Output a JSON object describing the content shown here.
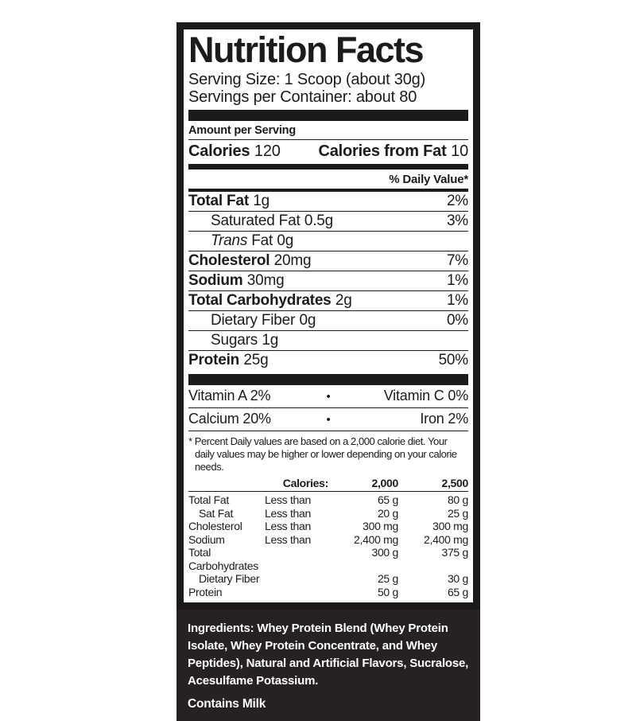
{
  "colors": {
    "ink": "#1c1a1b",
    "panel_bg": "#262223",
    "paper": "#ffffff"
  },
  "label": {
    "title": "Nutrition Facts",
    "serving_size": "Serving Size: 1 Scoop (about 30g)",
    "servings_per_container": "Servings per Container: about 80",
    "amount_per_serving": "Amount per Serving",
    "calories": {
      "label": "Calories",
      "value": "120",
      "from_fat_label": "Calories from Fat",
      "from_fat_value": "10"
    },
    "daily_value_header": "% Daily Value*",
    "nutrient_rows": [
      {
        "name": "Total Fat",
        "amount": "1g",
        "dv": "2%",
        "bold": true,
        "indent": 0,
        "italic": false
      },
      {
        "name": "Saturated Fat",
        "amount": "0.5g",
        "dv": "3%",
        "bold": false,
        "indent": 1,
        "italic": false
      },
      {
        "name": "Trans Fat",
        "amount": "0g",
        "dv": "",
        "bold": false,
        "indent": 1,
        "italic": true
      },
      {
        "name": "Cholesterol",
        "amount": "20mg",
        "dv": "7%",
        "bold": true,
        "indent": 0,
        "italic": false
      },
      {
        "name": "Sodium",
        "amount": "30mg",
        "dv": "1%",
        "bold": true,
        "indent": 0,
        "italic": false
      },
      {
        "name": "Total Carbohydrates",
        "amount": "2g",
        "dv": "1%",
        "bold": true,
        "indent": 0,
        "italic": false
      },
      {
        "name": "Dietary Fiber",
        "amount": "0g",
        "dv": "0%",
        "bold": false,
        "indent": 1,
        "italic": false
      },
      {
        "name": "Sugars",
        "amount": "1g",
        "dv": "",
        "bold": false,
        "indent": 1,
        "italic": false
      },
      {
        "name": "Protein",
        "amount": "25g",
        "dv": "50%",
        "bold": true,
        "indent": 0,
        "italic": false
      }
    ],
    "micronutrients": [
      {
        "left": "Vitamin A  2%",
        "bullet": "•",
        "right": "Vitamin C  0%"
      },
      {
        "left": "Calcium  20%",
        "bullet": "•",
        "right": "Iron  2%"
      }
    ],
    "footnote": "* Percent Daily values are based on a 2,000 calorie diet. Your daily values may be higher or lower depending on your calorie needs.",
    "dv_table": {
      "header": {
        "calories_label": "Calories:",
        "col_2000": "2,000",
        "col_2500": "2,500"
      },
      "rows": [
        {
          "name": "Total Fat",
          "qualifier": "Less than",
          "v2000": "65 g",
          "v2500": "80 g",
          "indent": 0
        },
        {
          "name": "Sat Fat",
          "qualifier": "Less than",
          "v2000": "20 g",
          "v2500": "25 g",
          "indent": 1
        },
        {
          "name": "Cholesterol",
          "qualifier": "Less than",
          "v2000": "300 mg",
          "v2500": "300 mg",
          "indent": 0
        },
        {
          "name": "Sodium",
          "qualifier": "Less than",
          "v2000": "2,400 mg",
          "v2500": "2,400 mg",
          "indent": 0
        },
        {
          "name": "Total Carbohydrates",
          "qualifier": "",
          "v2000": "300 g",
          "v2500": "375 g",
          "indent": 0
        },
        {
          "name": "Dietary Fiber",
          "qualifier": "",
          "v2000": "25 g",
          "v2500": "30 g",
          "indent": 1
        },
        {
          "name": "Protein",
          "qualifier": "",
          "v2000": "50 g",
          "v2500": "65 g",
          "indent": 0
        }
      ]
    }
  },
  "ingredients_panel": {
    "label": "Ingredients:",
    "text": "Whey Protein Blend (Whey Protein Isolate, Whey Protein Concentrate, and Whey Peptides), Natural and Artificial Flavors, Sucralose, Acesulfame Potassium.",
    "contains": "Contains Milk"
  }
}
